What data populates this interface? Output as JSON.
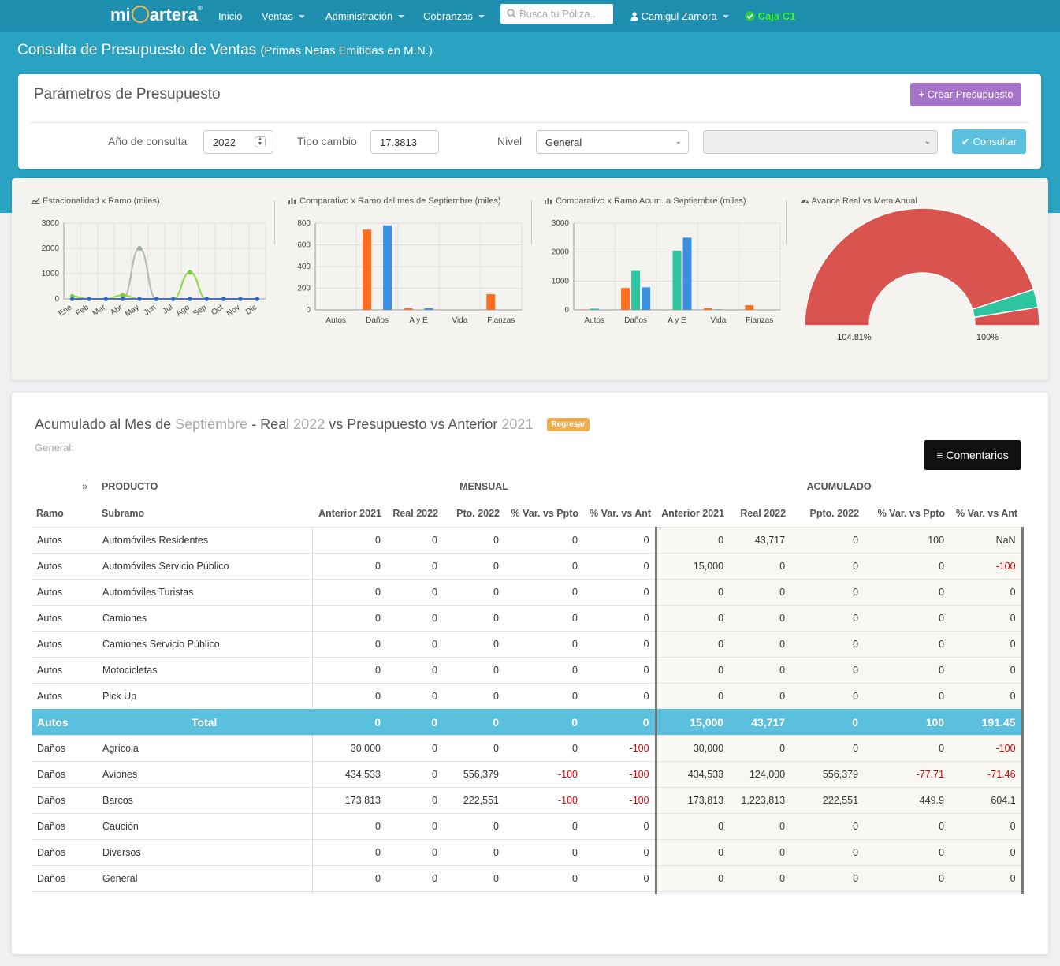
{
  "nav": {
    "logo_pre": "mi",
    "logo_post": "artera",
    "logo_reg": "®",
    "items": [
      {
        "label": "Inicio",
        "dropdown": false
      },
      {
        "label": "Ventas",
        "dropdown": true
      },
      {
        "label": "Administración",
        "dropdown": true
      },
      {
        "label": "Cobranzas",
        "dropdown": true
      }
    ],
    "search_placeholder": "Busca tu Póliza..",
    "user": "Camigul Zamora",
    "caja": "Caja C1"
  },
  "page": {
    "title": "Consulta de Presupuesto de Ventas",
    "title_small": "(Primas Netas Emitidas en M.N.)"
  },
  "params": {
    "heading": "Parámetros de Presupuesto",
    "crear_label": "Crear Presupuesto",
    "anio_label": "Año de consulta",
    "anio_value": "2022",
    "tipo_label": "Tipo cambio",
    "tipo_value": "17.3813",
    "nivel_label": "Nivel",
    "nivel_value": "General",
    "consultar_label": "Consultar"
  },
  "chart_data": [
    {
      "type": "line",
      "title": "Estacionalidad x Ramo (miles)",
      "categories": [
        "Ene",
        "Feb",
        "Mar",
        "Abr",
        "May",
        "Jun",
        "Jul",
        "Ago",
        "Sep",
        "Oct",
        "Nov",
        "Dic"
      ],
      "ylim": [
        0,
        3000
      ],
      "yticks": [
        0,
        1000,
        2000,
        3000
      ],
      "grid": true,
      "series": [
        {
          "color": "#aaaaaa",
          "values": [
            0,
            0,
            0,
            0,
            2000,
            0,
            0,
            0,
            0,
            0,
            0,
            0
          ]
        },
        {
          "color": "#7ed321",
          "values": [
            100,
            0,
            0,
            150,
            0,
            0,
            0,
            1050,
            0,
            0,
            0,
            0
          ]
        },
        {
          "color": "#3b5bdb",
          "values": [
            0,
            0,
            0,
            0,
            0,
            0,
            0,
            0,
            0,
            0,
            0,
            0
          ]
        }
      ]
    },
    {
      "type": "bar",
      "title": "Comparativo x Ramo del mes de Septiembre (miles)",
      "categories": [
        "Autos",
        "Daños",
        "A y E",
        "Vida",
        "Fianzas"
      ],
      "ylim": [
        0,
        800
      ],
      "yticks": [
        0,
        200,
        400,
        600,
        800
      ],
      "grid": true,
      "series": [
        {
          "color": "#ff6d1f",
          "values": [
            0,
            740,
            15,
            0,
            145
          ]
        },
        {
          "color": "#2ec4a0",
          "values": [
            0,
            0,
            0,
            0,
            0
          ]
        },
        {
          "color": "#3a8fe0",
          "values": [
            0,
            780,
            15,
            0,
            0
          ]
        }
      ]
    },
    {
      "type": "bar",
      "title": "Comparativo x Ramo Acum. a Septiembre (miles)",
      "categories": [
        "Autos",
        "Daños",
        "A y E",
        "Vida",
        "Fianzas"
      ],
      "ylim": [
        0,
        3000
      ],
      "yticks": [
        0,
        1000,
        2000,
        3000
      ],
      "grid": true,
      "series": [
        {
          "color": "#ff6d1f",
          "values": [
            15,
            760,
            0,
            60,
            160
          ]
        },
        {
          "color": "#2ec4a0",
          "values": [
            44,
            1350,
            2050,
            20,
            0
          ]
        },
        {
          "color": "#3a8fe0",
          "values": [
            0,
            780,
            2500,
            0,
            0
          ]
        }
      ]
    },
    {
      "type": "pie",
      "title": "Avance Real vs Meta Anual",
      "labels": [
        "104.81%",
        "100%"
      ],
      "slices": [
        {
          "color": "#d9534f",
          "value": 90
        },
        {
          "color": "#2ec4a0",
          "value": 5
        },
        {
          "color": "#d9534f",
          "value": 5
        }
      ]
    }
  ],
  "report": {
    "t_pre": "Acumulado al Mes de",
    "t_mes": "Septiembre",
    "t_mid1": "- Real",
    "t_year1": "2022",
    "t_mid2": "vs Presupuesto vs Anterior",
    "t_year2": "2021",
    "regresar": "Regresar",
    "subtitle": "General:",
    "comentarios": "Comentarios",
    "group_chev": "»",
    "group_producto": "PRODUCTO",
    "group_mensual": "MENSUAL",
    "group_acumulado": "ACUMULADO",
    "headers": [
      "Ramo",
      "Subramo",
      "Anterior 2021",
      "Real 2022",
      "Pto. 2022",
      "% Var. vs Ppto",
      "% Var. vs Ant",
      "Anterior 2021",
      "Real 2022",
      "Ppto. 2022",
      "% Var. vs Ppto",
      "% Var. vs Ant"
    ],
    "rows": [
      [
        "Autos",
        "Automóviles Residentes",
        "0",
        "0",
        "0",
        "0",
        "0",
        "0",
        "43,717",
        "0",
        "100",
        "NaN"
      ],
      [
        "Autos",
        "Automóviles Servicio Público",
        "0",
        "0",
        "0",
        "0",
        "0",
        "15,000",
        "0",
        "0",
        "0",
        "-100"
      ],
      [
        "Autos",
        "Automóviles Turistas",
        "0",
        "0",
        "0",
        "0",
        "0",
        "0",
        "0",
        "0",
        "0",
        "0"
      ],
      [
        "Autos",
        "Camiones",
        "0",
        "0",
        "0",
        "0",
        "0",
        "0",
        "0",
        "0",
        "0",
        "0"
      ],
      [
        "Autos",
        "Camiones Servicio Público",
        "0",
        "0",
        "0",
        "0",
        "0",
        "0",
        "0",
        "0",
        "0",
        "0"
      ],
      [
        "Autos",
        "Motocicletas",
        "0",
        "0",
        "0",
        "0",
        "0",
        "0",
        "0",
        "0",
        "0",
        "0"
      ],
      [
        "Autos",
        "Pick Up",
        "0",
        "0",
        "0",
        "0",
        "0",
        "0",
        "0",
        "0",
        "0",
        "0"
      ],
      [
        "Autos",
        "Total",
        "0",
        "0",
        "0",
        "0",
        "0",
        "15,000",
        "43,717",
        "0",
        "100",
        "191.45"
      ],
      [
        "Daños",
        "Agrícola",
        "30,000",
        "0",
        "0",
        "0",
        "-100",
        "30,000",
        "0",
        "0",
        "0",
        "-100"
      ],
      [
        "Daños",
        "Aviones",
        "434,533",
        "0",
        "556,379",
        "-100",
        "-100",
        "434,533",
        "124,000",
        "556,379",
        "-77.71",
        "-71.46"
      ],
      [
        "Daños",
        "Barcos",
        "173,813",
        "0",
        "222,551",
        "-100",
        "-100",
        "173,813",
        "1,223,813",
        "222,551",
        "449.9",
        "604.1"
      ],
      [
        "Daños",
        "Caución",
        "0",
        "0",
        "0",
        "0",
        "0",
        "0",
        "0",
        "0",
        "0",
        "0"
      ],
      [
        "Daños",
        "Diversos",
        "0",
        "0",
        "0",
        "0",
        "0",
        "0",
        "0",
        "0",
        "0",
        "0"
      ],
      [
        "Daños",
        "General",
        "0",
        "0",
        "0",
        "0",
        "0",
        "0",
        "0",
        "0",
        "0",
        "0"
      ]
    ]
  }
}
